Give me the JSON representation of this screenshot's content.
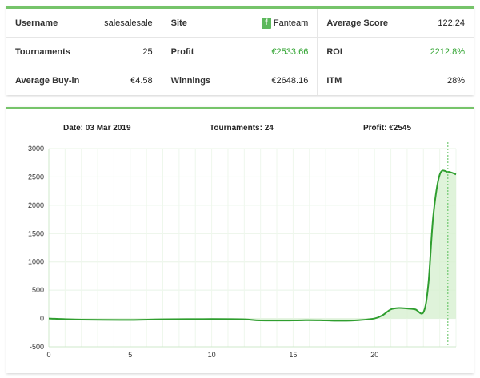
{
  "stats": [
    {
      "label": "Username",
      "value": "salesalesale",
      "color": ""
    },
    {
      "label": "Site",
      "value": "Fanteam",
      "color": "",
      "icon": "fanteam-logo-icon",
      "icon_letter": "f"
    },
    {
      "label": "Average Score",
      "value": "122.24",
      "color": ""
    },
    {
      "label": "Tournaments",
      "value": "25",
      "color": ""
    },
    {
      "label": "Profit",
      "value": "€2533.66",
      "color": "green"
    },
    {
      "label": "ROI",
      "value": "2212.8%",
      "color": "green"
    },
    {
      "label": "Average Buy-in",
      "value": "€4.58",
      "color": ""
    },
    {
      "label": "Winnings",
      "value": "€2648.16",
      "color": ""
    },
    {
      "label": "ITM",
      "value": "28%",
      "color": ""
    }
  ],
  "tooltip": {
    "date_label": "Date:",
    "date_value": "03 Mar 2019",
    "tournaments_label": "Tournaments:",
    "tournaments_value": "24",
    "profit_label": "Profit:",
    "profit_value": "€2545"
  },
  "colors": {
    "accent": "#76c46a",
    "line": "#2f9e2f",
    "fill": "#d7f0d1",
    "green_text": "#2fa32f"
  },
  "chart_data": {
    "type": "area",
    "x": [
      0,
      2,
      5,
      7,
      10,
      12,
      13,
      15,
      16,
      17,
      18,
      19,
      20,
      20.5,
      21,
      21.5,
      22,
      22.5,
      23,
      23.3,
      23.6,
      24,
      24.5,
      25
    ],
    "y": [
      0,
      -20,
      -25,
      -15,
      -10,
      -15,
      -35,
      -35,
      -30,
      -35,
      -40,
      -30,
      0,
      60,
      160,
      185,
      175,
      160,
      110,
      600,
      1800,
      2540,
      2590,
      2545
    ],
    "xlim": [
      0,
      25
    ],
    "ylim": [
      -500,
      3000
    ],
    "xticks": [
      "0",
      "5",
      "10",
      "15",
      "20"
    ],
    "xtick_values": [
      0,
      5,
      10,
      15,
      20
    ],
    "yticks": [
      "-500",
      "0",
      "500",
      "1000",
      "1500",
      "2000",
      "2500",
      "3000"
    ],
    "ytick_values": [
      -500,
      0,
      500,
      1000,
      1500,
      2000,
      2500,
      3000
    ],
    "cursor_x": 24.5,
    "grid": true,
    "title": "",
    "xlabel": "",
    "ylabel": ""
  }
}
